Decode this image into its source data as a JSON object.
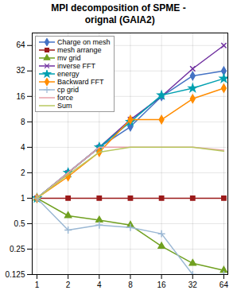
{
  "chart_data": {
    "type": "line",
    "title": "MPI decomposition of SPME -\n orignal (GAIA2)",
    "x": [
      1,
      2,
      4,
      8,
      16,
      32,
      64
    ],
    "series": [
      {
        "name": "Charge on mesh",
        "color": "#4472C4",
        "marker": "diamond",
        "values": [
          1,
          2.0,
          4.0,
          7.0,
          16.0,
          28.0,
          32.0
        ]
      },
      {
        "name": "mesh arrange",
        "color": "#9B1A1A",
        "marker": "square",
        "values": [
          1,
          1,
          1,
          1,
          1,
          1,
          1
        ]
      },
      {
        "name": "mv grid",
        "color": "#70A020",
        "marker": "triangle",
        "values": [
          1,
          0.62,
          0.55,
          0.48,
          0.27,
          0.17,
          0.14
        ]
      },
      {
        "name": "inverse FFT",
        "color": "#7030A0",
        "marker": "times",
        "values": [
          1,
          2.0,
          4.0,
          8.5,
          16.0,
          34.0,
          64.0
        ]
      },
      {
        "name": "energy",
        "color": "#00A0B0",
        "marker": "star",
        "values": [
          1,
          2.0,
          4.0,
          8.0,
          16.5,
          20.0,
          26.0
        ]
      },
      {
        "name": "Backward FFT",
        "color": "#FF8C00",
        "marker": "diamond",
        "values": [
          1,
          1.8,
          3.5,
          8.5,
          8.5,
          15.0,
          20.0
        ]
      },
      {
        "name": "cp grid",
        "color": "#9BB8D4",
        "marker": "plus",
        "values": [
          1,
          0.42,
          0.48,
          0.45,
          0.38,
          0.125,
          0.125
        ]
      },
      {
        "name": "force",
        "color": "#E8A0A8",
        "values": [
          1,
          2.0,
          4.0,
          4.0,
          4.0,
          4.0,
          3.7
        ]
      },
      {
        "name": "Sum",
        "color": "#B8C860",
        "values": [
          1,
          1.9,
          3.5,
          4.0,
          4.0,
          4.0,
          3.6
        ]
      }
    ],
    "xlim": [
      0.9,
      70
    ],
    "ylim": [
      0.125,
      90
    ],
    "xticks": [
      1,
      2,
      4,
      8,
      16,
      32,
      64
    ],
    "yticks": [
      0.125,
      0.25,
      0.5,
      1,
      2,
      4,
      8,
      16,
      32,
      64
    ],
    "log": true,
    "grid": true,
    "legend": "upper left"
  }
}
